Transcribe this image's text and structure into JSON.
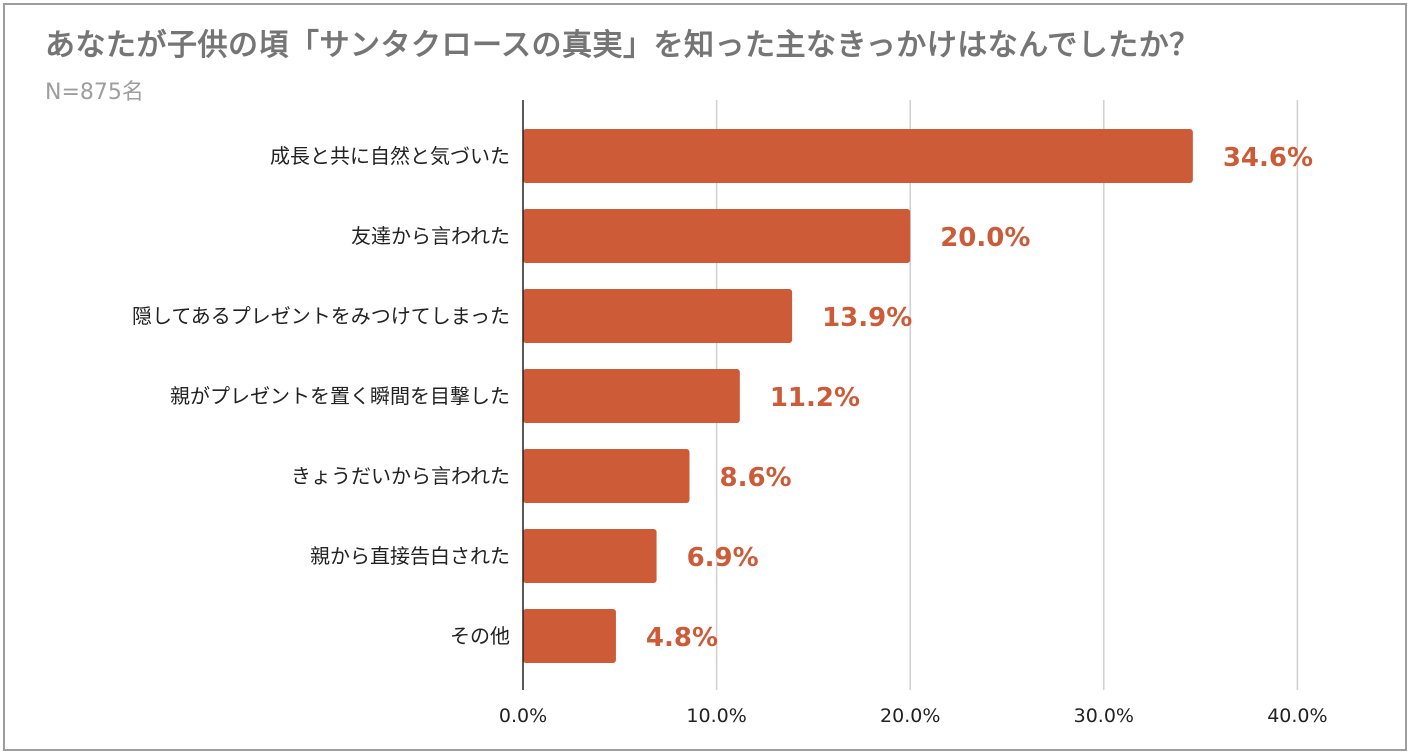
{
  "chart_data": {
    "type": "bar",
    "orientation": "horizontal",
    "title": "あなたが子供の頃「サンタクロースの真実」を知った主なきっかけはなんでしたか？",
    "subtitle": "N=875名",
    "categories": [
      "成長と共に自然と気づいた",
      "友達から言われた",
      "隠してあるプレゼントをみつけてしまった",
      "親がプレゼントを置く瞬間を目撃した",
      "きょうだいから言われた",
      "親から直接告白された",
      "その他"
    ],
    "values": [
      34.6,
      20.0,
      13.9,
      11.2,
      8.6,
      6.9,
      4.8
    ],
    "value_labels": [
      "34.6%",
      "20.0%",
      "13.9%",
      "11.2%",
      "8.6%",
      "6.9%",
      "4.8%"
    ],
    "xlim": [
      0,
      40
    ],
    "xticks": [
      0,
      10,
      20,
      30,
      40
    ],
    "xtick_labels": [
      "0.0%",
      "10.0%",
      "20.0%",
      "30.0%",
      "40.0%"
    ],
    "grid": true,
    "bar_color": "#cd5b38",
    "label_color": "#cd5b38"
  }
}
